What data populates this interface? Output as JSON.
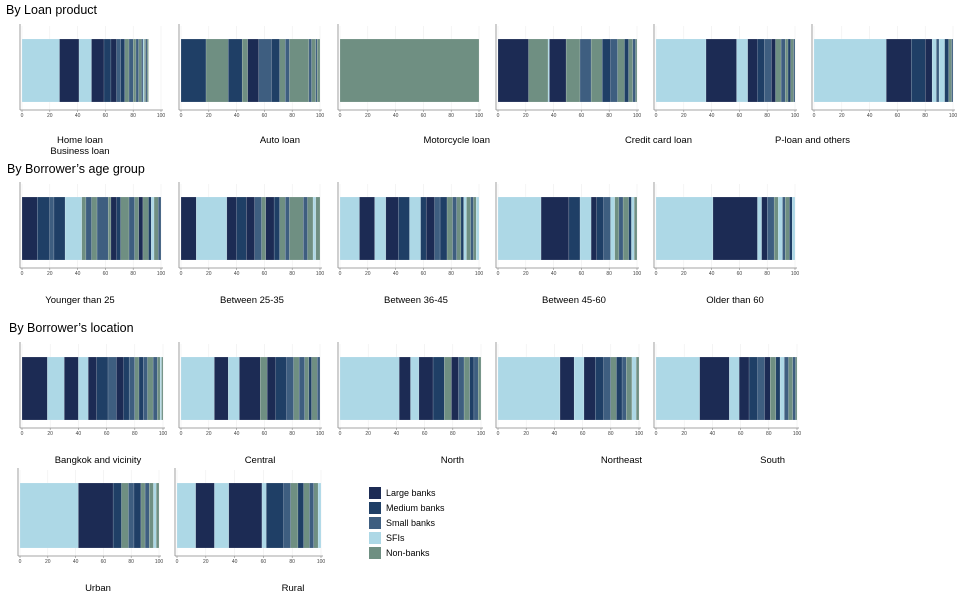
{
  "sections": {
    "loan": "By Loan product",
    "age": "By Borrower’s age group",
    "location": "By Borrower’s location"
  },
  "legend": [
    {
      "key": "large",
      "label": "Large banks",
      "color": "#1c2b54"
    },
    {
      "key": "medium",
      "label": "Medium banks",
      "color": "#1f3f66"
    },
    {
      "key": "small",
      "label": "Small banks",
      "color": "#3e5e80"
    },
    {
      "key": "sfi",
      "label": "SFIs",
      "color": "#add8e6"
    },
    {
      "key": "nonbank",
      "label": "Non-banks",
      "color": "#6f8f82"
    }
  ],
  "chart_data": [
    {
      "type": "bar",
      "section": "loan",
      "label": "Home loan\nBusiness loan",
      "xlim": [
        0,
        100
      ],
      "ticks": [
        0,
        20,
        40,
        60,
        80,
        100
      ],
      "segments": [
        [
          "sfi",
          27
        ],
        [
          "large",
          14
        ],
        [
          "sfi",
          9
        ],
        [
          "large",
          9
        ],
        [
          "medium",
          5
        ],
        [
          "large",
          4
        ],
        [
          "small",
          3
        ],
        [
          "medium",
          3
        ],
        [
          "nonbank",
          3
        ],
        [
          "small",
          3
        ],
        [
          "nonbank",
          2
        ],
        [
          "small",
          2
        ],
        [
          "nonbank",
          2
        ],
        [
          "medium",
          1
        ],
        [
          "sfi",
          1
        ],
        [
          "nonbank",
          1
        ],
        [
          "small",
          1
        ],
        [
          "nonbank",
          1
        ]
      ]
    },
    {
      "type": "bar",
      "section": "loan",
      "label": "Auto loan",
      "xlim": [
        0,
        100
      ],
      "ticks": [
        0,
        20,
        40,
        60,
        80,
        100
      ],
      "segments": [
        [
          "medium",
          18
        ],
        [
          "nonbank",
          16
        ],
        [
          "medium",
          10
        ],
        [
          "nonbank",
          4
        ],
        [
          "large",
          8
        ],
        [
          "small",
          9
        ],
        [
          "medium",
          6
        ],
        [
          "nonbank",
          4
        ],
        [
          "small",
          3
        ],
        [
          "nonbank",
          14
        ],
        [
          "small",
          2
        ],
        [
          "nonbank",
          3
        ],
        [
          "small",
          1
        ],
        [
          "nonbank",
          2
        ]
      ]
    },
    {
      "type": "bar",
      "section": "loan",
      "label": "Motorcycle loan",
      "xlim": [
        0,
        100
      ],
      "ticks": [
        0,
        20,
        40,
        60,
        80,
        100
      ],
      "segments": [
        [
          "nonbank",
          100
        ]
      ]
    },
    {
      "type": "bar",
      "section": "loan",
      "label": "Credit card loan",
      "xlim": [
        0,
        100
      ],
      "ticks": [
        0,
        20,
        40,
        60,
        80,
        100
      ],
      "segments": [
        [
          "large",
          22
        ],
        [
          "nonbank",
          14
        ],
        [
          "sfi",
          1
        ],
        [
          "large",
          12
        ],
        [
          "nonbank",
          10
        ],
        [
          "small",
          8
        ],
        [
          "nonbank",
          8
        ],
        [
          "medium",
          6
        ],
        [
          "small",
          5
        ],
        [
          "nonbank",
          5
        ],
        [
          "medium",
          3
        ],
        [
          "nonbank",
          3
        ],
        [
          "small",
          2
        ],
        [
          "nonbank",
          1
        ]
      ]
    },
    {
      "type": "bar",
      "section": "loan",
      "label": "P-loan and others",
      "xlim": [
        0,
        100
      ],
      "ticks": [
        0,
        20,
        40,
        60,
        80,
        100
      ],
      "segments": [
        [
          "sfi",
          36
        ],
        [
          "large",
          22
        ],
        [
          "sfi",
          8
        ],
        [
          "large",
          7
        ],
        [
          "medium",
          5
        ],
        [
          "small",
          5
        ],
        [
          "large",
          3
        ],
        [
          "nonbank",
          4
        ],
        [
          "small",
          3
        ],
        [
          "nonbank",
          2
        ],
        [
          "medium",
          2
        ],
        [
          "nonbank",
          2
        ],
        [
          "small",
          1
        ]
      ]
    },
    {
      "type": "bar",
      "section": "loan",
      "label": "",
      "xlim": [
        0,
        100
      ],
      "ticks": [
        0,
        20,
        40,
        60,
        80,
        100
      ],
      "segments": [
        [
          "sfi",
          52
        ],
        [
          "large",
          18
        ],
        [
          "medium",
          10
        ],
        [
          "large",
          5
        ],
        [
          "sfi",
          3
        ],
        [
          "small",
          2
        ],
        [
          "sfi",
          4
        ],
        [
          "medium",
          3
        ],
        [
          "nonbank",
          2
        ],
        [
          "small",
          1
        ]
      ]
    },
    {
      "type": "bar",
      "section": "age",
      "label": "Younger than 25",
      "xlim": [
        0,
        100
      ],
      "ticks": [
        0,
        20,
        40,
        60,
        80,
        100
      ],
      "segments": [
        [
          "large",
          11
        ],
        [
          "medium",
          9
        ],
        [
          "small",
          3
        ],
        [
          "medium",
          8
        ],
        [
          "sfi",
          12
        ],
        [
          "nonbank",
          3
        ],
        [
          "small",
          4
        ],
        [
          "nonbank",
          4
        ],
        [
          "small",
          8
        ],
        [
          "nonbank",
          2
        ],
        [
          "large",
          4
        ],
        [
          "medium",
          3
        ],
        [
          "nonbank",
          6
        ],
        [
          "small",
          4
        ],
        [
          "nonbank",
          3
        ],
        [
          "large",
          3
        ],
        [
          "nonbank",
          4
        ],
        [
          "medium",
          2
        ],
        [
          "sfi",
          2
        ],
        [
          "nonbank",
          3
        ],
        [
          "small",
          2
        ],
        [
          "nonbank",
          2
        ]
      ]
    },
    {
      "type": "bar",
      "section": "age",
      "label": "Between  25-35",
      "xlim": [
        0,
        100
      ],
      "ticks": [
        0,
        20,
        40,
        60,
        80,
        100
      ],
      "segments": [
        [
          "large",
          11
        ],
        [
          "sfi",
          22
        ],
        [
          "large",
          7
        ],
        [
          "medium",
          7
        ],
        [
          "large",
          6
        ],
        [
          "small",
          5
        ],
        [
          "nonbank",
          3
        ],
        [
          "large",
          6
        ],
        [
          "medium",
          4
        ],
        [
          "nonbank",
          4
        ],
        [
          "small",
          3
        ],
        [
          "nonbank",
          10
        ],
        [
          "small",
          3
        ],
        [
          "nonbank",
          4
        ],
        [
          "sfi",
          2
        ],
        [
          "nonbank",
          3
        ]
      ]
    },
    {
      "type": "bar",
      "section": "age",
      "label": "Between  36-45",
      "xlim": [
        0,
        100
      ],
      "ticks": [
        0,
        20,
        40,
        60,
        80,
        100
      ],
      "segments": [
        [
          "sfi",
          14
        ],
        [
          "large",
          11
        ],
        [
          "sfi",
          8
        ],
        [
          "large",
          9
        ],
        [
          "medium",
          8
        ],
        [
          "sfi",
          8
        ],
        [
          "medium",
          4
        ],
        [
          "large",
          6
        ],
        [
          "small",
          4
        ],
        [
          "medium",
          5
        ],
        [
          "nonbank",
          4
        ],
        [
          "small",
          3
        ],
        [
          "nonbank",
          3
        ],
        [
          "medium",
          2
        ],
        [
          "sfi",
          2
        ],
        [
          "nonbank",
          3
        ],
        [
          "small",
          2
        ],
        [
          "nonbank",
          2
        ],
        [
          "sfi",
          2
        ]
      ]
    },
    {
      "type": "bar",
      "section": "age",
      "label": "Between  45-60",
      "xlim": [
        0,
        100
      ],
      "ticks": [
        0,
        20,
        40,
        60,
        80,
        100
      ],
      "segments": [
        [
          "sfi",
          31
        ],
        [
          "large",
          20
        ],
        [
          "medium",
          8
        ],
        [
          "sfi",
          8
        ],
        [
          "large",
          4
        ],
        [
          "medium",
          5
        ],
        [
          "small",
          5
        ],
        [
          "sfi",
          3
        ],
        [
          "nonbank",
          3
        ],
        [
          "small",
          3
        ],
        [
          "nonbank",
          4
        ],
        [
          "medium",
          2
        ],
        [
          "sfi",
          2
        ],
        [
          "nonbank",
          2
        ]
      ]
    },
    {
      "type": "bar",
      "section": "age",
      "label": "Older than 60",
      "xlim": [
        0,
        100
      ],
      "ticks": [
        0,
        20,
        40,
        60,
        80,
        100
      ],
      "segments": [
        [
          "sfi",
          41
        ],
        [
          "large",
          32
        ],
        [
          "sfi",
          3
        ],
        [
          "large",
          4
        ],
        [
          "small",
          5
        ],
        [
          "nonbank",
          3
        ],
        [
          "sfi",
          3
        ],
        [
          "small",
          2
        ],
        [
          "nonbank",
          3
        ],
        [
          "medium",
          2
        ],
        [
          "sfi",
          2
        ]
      ]
    },
    {
      "type": "bar",
      "section": "location",
      "label": "Bangkok and vicinity",
      "xlim": [
        0,
        100
      ],
      "ticks": [
        0,
        20,
        40,
        60,
        80,
        100
      ],
      "segments": [
        [
          "large",
          18
        ],
        [
          "sfi",
          12
        ],
        [
          "large",
          10
        ],
        [
          "sfi",
          7
        ],
        [
          "large",
          6
        ],
        [
          "medium",
          8
        ],
        [
          "small",
          6
        ],
        [
          "large",
          5
        ],
        [
          "medium",
          4
        ],
        [
          "small",
          4
        ],
        [
          "nonbank",
          3
        ],
        [
          "medium",
          3
        ],
        [
          "small",
          3
        ],
        [
          "nonbank",
          4
        ],
        [
          "small",
          3
        ],
        [
          "nonbank",
          2
        ],
        [
          "sfi",
          1
        ],
        [
          "nonbank",
          1
        ]
      ]
    },
    {
      "type": "bar",
      "section": "location",
      "label": "Central",
      "xlim": [
        0,
        100
      ],
      "ticks": [
        0,
        20,
        40,
        60,
        80,
        100
      ],
      "segments": [
        [
          "sfi",
          24
        ],
        [
          "large",
          10
        ],
        [
          "sfi",
          8
        ],
        [
          "large",
          15
        ],
        [
          "nonbank",
          5
        ],
        [
          "large",
          6
        ],
        [
          "medium",
          8
        ],
        [
          "small",
          5
        ],
        [
          "nonbank",
          4
        ],
        [
          "small",
          4
        ],
        [
          "nonbank",
          3
        ],
        [
          "medium",
          2
        ],
        [
          "nonbank",
          4
        ],
        [
          "small",
          2
        ]
      ]
    },
    {
      "type": "bar",
      "section": "location",
      "label": "North",
      "xlim": [
        0,
        100
      ],
      "ticks": [
        0,
        20,
        40,
        60,
        80,
        100
      ],
      "segments": [
        [
          "sfi",
          42
        ],
        [
          "large",
          8
        ],
        [
          "sfi",
          6
        ],
        [
          "large",
          10
        ],
        [
          "medium",
          8
        ],
        [
          "nonbank",
          5
        ],
        [
          "large",
          5
        ],
        [
          "small",
          4
        ],
        [
          "nonbank",
          4
        ],
        [
          "medium",
          3
        ],
        [
          "small",
          3
        ],
        [
          "nonbank",
          2
        ]
      ]
    },
    {
      "type": "bar",
      "section": "location",
      "label": "Northeast",
      "xlim": [
        0,
        100
      ],
      "ticks": [
        0,
        20,
        40,
        60,
        80,
        100
      ],
      "segments": [
        [
          "sfi",
          44
        ],
        [
          "large",
          10
        ],
        [
          "sfi",
          7
        ],
        [
          "large",
          8
        ],
        [
          "medium",
          6
        ],
        [
          "small",
          5
        ],
        [
          "nonbank",
          4
        ],
        [
          "medium",
          4
        ],
        [
          "small",
          3
        ],
        [
          "nonbank",
          4
        ],
        [
          "sfi",
          3
        ],
        [
          "nonbank",
          2
        ]
      ]
    },
    {
      "type": "bar",
      "section": "location",
      "label": "South",
      "xlim": [
        0,
        100
      ],
      "ticks": [
        0,
        20,
        40,
        60,
        80,
        100
      ],
      "segments": [
        [
          "sfi",
          31
        ],
        [
          "large",
          21
        ],
        [
          "sfi",
          7
        ],
        [
          "large",
          7
        ],
        [
          "medium",
          6
        ],
        [
          "small",
          5
        ],
        [
          "large",
          4
        ],
        [
          "nonbank",
          4
        ],
        [
          "medium",
          3
        ],
        [
          "sfi",
          3
        ],
        [
          "small",
          3
        ],
        [
          "nonbank",
          3
        ],
        [
          "small",
          2
        ],
        [
          "nonbank",
          1
        ]
      ]
    },
    {
      "type": "bar",
      "section": "location",
      "label": "Urban",
      "xlim": [
        0,
        100
      ],
      "ticks": [
        0,
        20,
        40,
        60,
        80,
        100
      ],
      "segments": [
        [
          "sfi",
          42
        ],
        [
          "large",
          25
        ],
        [
          "medium",
          6
        ],
        [
          "nonbank",
          5
        ],
        [
          "small",
          4
        ],
        [
          "medium",
          5
        ],
        [
          "nonbank",
          3
        ],
        [
          "small",
          3
        ],
        [
          "nonbank",
          3
        ],
        [
          "sfi",
          2
        ],
        [
          "nonbank",
          2
        ]
      ]
    },
    {
      "type": "bar",
      "section": "location",
      "label": "Rural",
      "xlim": [
        0,
        100
      ],
      "ticks": [
        0,
        20,
        40,
        60,
        80,
        100
      ],
      "segments": [
        [
          "sfi",
          13
        ],
        [
          "large",
          13
        ],
        [
          "sfi",
          10
        ],
        [
          "large",
          23
        ],
        [
          "sfi",
          3
        ],
        [
          "medium",
          12
        ],
        [
          "small",
          5
        ],
        [
          "nonbank",
          5
        ],
        [
          "medium",
          4
        ],
        [
          "nonbank",
          4
        ],
        [
          "small",
          3
        ],
        [
          "nonbank",
          3
        ],
        [
          "sfi",
          2
        ]
      ]
    }
  ]
}
